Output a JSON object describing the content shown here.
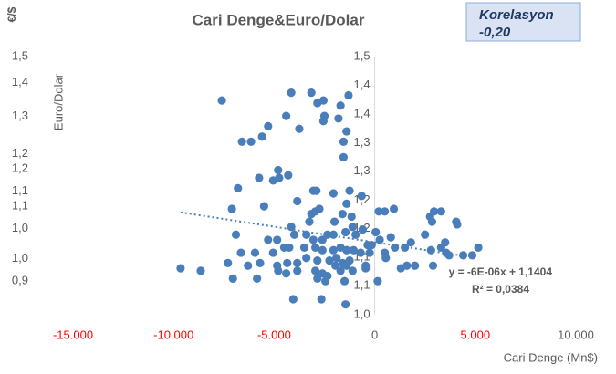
{
  "chart_data": {
    "type": "scatter",
    "title": "Cari Denge&Euro/Dolar",
    "corner_label": "€/$",
    "y_label": "Euro/Dolar",
    "x_label": "Cari Denge (Mn$)",
    "annotation": [
      "Korelasyon",
      "-0,20"
    ],
    "color": "#4a7ebb",
    "xlim": [
      -15000,
      10000
    ],
    "xticks": [
      {
        "value": -15000,
        "label": "-15.000"
      },
      {
        "value": -10000,
        "label": "-10.000"
      },
      {
        "value": -5000,
        "label": "-5.000"
      },
      0,
      {
        "value": 5000,
        "label": "5.000"
      },
      {
        "value": 10000,
        "label": "10.000"
      }
    ],
    "xtick_colors": [
      "#ff0000",
      "#ff0000",
      "#ff0000",
      "#595959",
      "#ff0000",
      "#595959"
    ],
    "ylim": [
      0.81,
      1.5
    ],
    "yticks": [
      {
        "value": 1.5,
        "label": "1,5"
      },
      {
        "value": 1.43,
        "label": "1,4"
      },
      {
        "value": 1.34,
        "label": "1,3"
      },
      {
        "value": 1.24,
        "label": "1,2"
      },
      {
        "value": 1.2,
        "label": "1,2"
      },
      {
        "value": 1.14,
        "label": "1,1"
      },
      {
        "value": 1.1,
        "label": "1,1"
      },
      {
        "value": 1.04,
        "label": "1,0"
      },
      {
        "value": 0.96,
        "label": "1,0"
      },
      {
        "value": 0.9,
        "label": "0,9"
      }
    ],
    "y2lim": [
      1.0,
      1.5
    ],
    "y2ticks": [
      {
        "value": 1.5,
        "label": "1,5"
      },
      {
        "value": 1.444,
        "label": "1,4"
      },
      {
        "value": 1.389,
        "label": "1,4"
      },
      {
        "value": 1.333,
        "label": "1,3"
      },
      {
        "value": 1.278,
        "label": "1,3"
      },
      {
        "value": 1.222,
        "label": "1,2"
      },
      {
        "value": 1.167,
        "label": "1,2"
      },
      {
        "value": 1.111,
        "label": "1,1"
      },
      {
        "value": 1.056,
        "label": "1,1"
      },
      {
        "value": 1.0,
        "label": "1,0"
      }
    ],
    "trendline": {
      "slope": -6e-06,
      "intercept": 1.1404,
      "equation": "y = -6E-06x + 1,1404",
      "r_squared": "R² = 0,0384"
    },
    "series": [
      {
        "axis": "y2",
        "x": [
          -7600,
          -4150,
          -3150,
          -2550,
          -2850,
          -1700,
          -1300,
          -4400,
          -2500,
          -5300,
          -3750,
          -2550,
          -1400,
          -1800,
          -6600,
          -6150,
          -5600,
          -1550,
          -1550,
          -4800,
          -4750,
          -4300,
          -5750,
          -5050,
          -6800,
          -2900,
          -3050,
          -2050,
          -1250,
          -650,
          -3850,
          -1400,
          -7100,
          -5500,
          -2750,
          -3150,
          -2950,
          -3250,
          -1600,
          -1150,
          200,
          500,
          950,
          2950,
          3300,
          2850,
          4050,
          4100,
          2750,
          2500,
          -2000,
          -4150,
          -1100,
          50,
          250,
          800,
          -150,
          -6900,
          -5300,
          -4850,
          -4000,
          -3400,
          -3050,
          -2600,
          -2350,
          -2050,
          -1450,
          -950,
          -600,
          -350,
          1000,
          1500,
          1800,
          3500,
          -6650,
          -5950,
          -5050,
          -4500,
          -4250,
          -3500,
          -2950,
          -2600,
          -2050,
          -1700,
          -1400,
          -1050,
          -700,
          -250,
          500,
          2800,
          3300,
          3550,
          5150,
          4850,
          3700,
          -7300,
          -6300,
          -5700,
          -4850,
          -4350,
          -3850,
          -3400,
          -2850,
          -2250,
          -1900,
          -1600,
          -1250,
          -450,
          550,
          1300,
          1600,
          2000,
          2900,
          4400,
          -4800,
          -4400,
          -3850,
          -2950,
          -2600,
          -2350,
          -1950,
          -1700,
          -1400,
          -1100,
          -450,
          -9650,
          -8650,
          -7050,
          -5850,
          -2850,
          -2450,
          -1500,
          150,
          -4050,
          -2650,
          -1450
        ],
        "values": [
          1.415,
          1.43,
          1.43,
          1.415,
          1.41,
          1.405,
          1.425,
          1.385,
          1.385,
          1.365,
          1.36,
          1.375,
          1.355,
          1.38,
          1.335,
          1.335,
          1.345,
          1.335,
          1.305,
          1.28,
          1.265,
          1.27,
          1.265,
          1.26,
          1.245,
          1.24,
          1.24,
          1.235,
          1.24,
          1.23,
          1.22,
          1.215,
          1.205,
          1.21,
          1.205,
          1.195,
          1.2,
          1.18,
          1.195,
          1.19,
          1.2,
          1.2,
          1.205,
          1.2,
          1.2,
          1.18,
          1.18,
          1.175,
          1.19,
          1.155,
          1.18,
          1.17,
          1.17,
          1.16,
          1.145,
          1.15,
          1.135,
          1.155,
          1.145,
          1.145,
          1.155,
          1.155,
          1.145,
          1.145,
          1.155,
          1.155,
          1.16,
          1.155,
          1.165,
          1.135,
          1.13,
          1.13,
          1.14,
          1.14,
          1.12,
          1.12,
          1.12,
          1.13,
          1.13,
          1.13,
          1.13,
          1.125,
          1.125,
          1.13,
          1.125,
          1.125,
          1.12,
          1.12,
          1.12,
          1.125,
          1.13,
          1.12,
          1.13,
          1.115,
          1.115,
          1.1,
          1.095,
          1.1,
          1.095,
          1.1,
          1.1,
          1.11,
          1.105,
          1.105,
          1.11,
          1.1,
          1.105,
          1.095,
          1.11,
          1.09,
          1.095,
          1.095,
          1.095,
          1.115,
          1.085,
          1.08,
          1.085,
          1.085,
          1.08,
          1.075,
          1.095,
          1.085,
          1.095,
          1.085,
          1.09,
          1.09,
          1.085,
          1.07,
          1.07,
          1.07,
          1.065,
          1.065,
          1.065,
          1.03,
          1.03,
          1.02
        ]
      }
    ]
  }
}
